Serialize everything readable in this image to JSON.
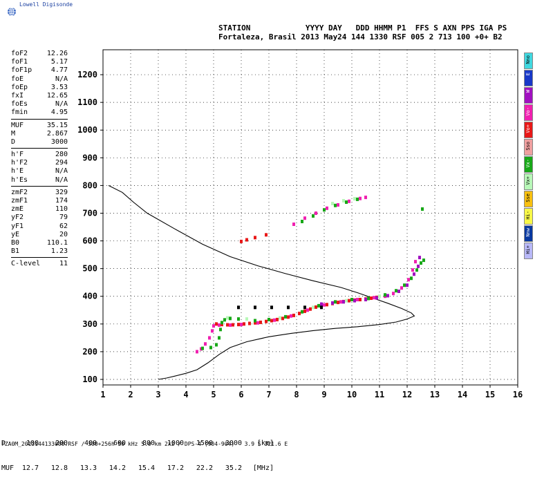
{
  "header": {
    "brand": "Lowell Digisonde",
    "station_row1": "STATION            YYYY DAY   DDD HHMM P1  FFS S AXN PPS IGA PS",
    "station_row2": "Fortaleza, Brasil 2013 May24 144 1330 RSF 005 2 713 100 +0+ B2"
  },
  "params": [
    {
      "label": "foF2",
      "value": "12.26"
    },
    {
      "label": "foF1",
      "value": "5.17"
    },
    {
      "label": "foF1p",
      "value": "4.77"
    },
    {
      "label": "foE",
      "value": "N/A"
    },
    {
      "label": "foEp",
      "value": "3.53"
    },
    {
      "label": "fxI",
      "value": "12.65"
    },
    {
      "label": "foEs",
      "value": "N/A"
    },
    {
      "label": "fmin",
      "value": "4.95"
    },
    {
      "sep": true
    },
    {
      "label": "MUF",
      "value": "35.15"
    },
    {
      "label": "M",
      "value": "2.867"
    },
    {
      "label": "D",
      "value": "3000"
    },
    {
      "sep": true
    },
    {
      "label": "h'F",
      "value": "280"
    },
    {
      "label": "h'F2",
      "value": "294"
    },
    {
      "label": "h'E",
      "value": "N/A"
    },
    {
      "label": "h'Es",
      "value": "N/A"
    },
    {
      "sep": true
    },
    {
      "label": "zmF2",
      "value": "329"
    },
    {
      "label": "zmF1",
      "value": "174"
    },
    {
      "label": "zmE",
      "value": "110"
    },
    {
      "label": "yF2",
      "value": "79"
    },
    {
      "label": "yF1",
      "value": "62"
    },
    {
      "label": "yE",
      "value": "20"
    },
    {
      "label": "B0",
      "value": "110.1"
    },
    {
      "label": "B1",
      "value": "1.23"
    },
    {
      "sep": true
    },
    {
      "label": "C-level",
      "value": "11"
    }
  ],
  "legend": [
    {
      "label": "Nno",
      "color": "#40d8e0"
    },
    {
      "label": "E",
      "color": "#1838c8"
    },
    {
      "label": "W",
      "color": "#a010c0"
    },
    {
      "label": "Vo-",
      "color": "#f020b0"
    },
    {
      "label": "Vo+",
      "color": "#e81818"
    },
    {
      "label": "Sso",
      "color": "#f0a0a0"
    },
    {
      "label": "Vx-",
      "color": "#18a818"
    },
    {
      "label": "Vx+",
      "color": "#b8f8b8"
    },
    {
      "label": "Sse",
      "color": "#f8c010"
    },
    {
      "label": "Hi-",
      "color": "#f8f848"
    },
    {
      "label": "Nnw",
      "color": "#0838a0"
    },
    {
      "label": "Hi+",
      "color": "#b8b8f8"
    }
  ],
  "muf_table": {
    "d_label": "D",
    "muf_label": "MUF",
    "distances": [
      "100",
      "200",
      "400",
      "600",
      "800",
      "1000",
      "1500",
      "3000"
    ],
    "mufs": [
      "12.7",
      "12.8",
      "13.3",
      "14.2",
      "15.4",
      "17.2",
      "22.2",
      "35.2"
    ],
    "d_unit": "[km]",
    "muf_unit": "[MHz]"
  },
  "footer": "FZA0M_2013144133000.RSF / 300+256h 50 kHz 5.0 km 2x2 / DPS-4 (904-904)   3.9 S 321.6 E",
  "chart_data": {
    "type": "scatter",
    "title": "",
    "xlabel": "",
    "ylabel": "",
    "xlim": [
      1,
      16
    ],
    "ylim": [
      80,
      1290
    ],
    "xticks": [
      1,
      2,
      3,
      4,
      5,
      6,
      7,
      8,
      9,
      10,
      11,
      12,
      13,
      14,
      15,
      16
    ],
    "yticks": [
      100,
      200,
      300,
      400,
      500,
      600,
      700,
      800,
      900,
      1000,
      1100,
      1200
    ],
    "grid": true,
    "series": [
      {
        "color": "#e81818",
        "points": [
          [
            5.1,
            300
          ],
          [
            5.3,
            298
          ],
          [
            5.5,
            297
          ],
          [
            5.7,
            297
          ],
          [
            5.9,
            298
          ],
          [
            6.1,
            300
          ],
          [
            6.3,
            302
          ],
          [
            6.5,
            304
          ],
          [
            6.7,
            306
          ],
          [
            6.9,
            309
          ],
          [
            7.1,
            312
          ],
          [
            7.3,
            316
          ],
          [
            7.5,
            320
          ],
          [
            7.7,
            325
          ],
          [
            7.9,
            331
          ],
          [
            8.1,
            338
          ],
          [
            8.3,
            346
          ],
          [
            8.5,
            354
          ],
          [
            8.7,
            361
          ],
          [
            8.9,
            366
          ],
          [
            9.1,
            370
          ],
          [
            9.3,
            374
          ],
          [
            9.5,
            378
          ],
          [
            9.7,
            381
          ],
          [
            9.9,
            384
          ],
          [
            10.1,
            386
          ],
          [
            10.3,
            388
          ],
          [
            10.5,
            390
          ],
          [
            10.7,
            393
          ],
          [
            10.9,
            396
          ],
          [
            6.0,
            598
          ],
          [
            6.2,
            604
          ],
          [
            6.5,
            612
          ],
          [
            6.9,
            622
          ]
        ]
      },
      {
        "color": "#f020b0",
        "points": [
          [
            4.4,
            200
          ],
          [
            4.55,
            210
          ],
          [
            4.7,
            228
          ],
          [
            4.85,
            250
          ],
          [
            4.95,
            275
          ],
          [
            5.0,
            293
          ],
          [
            5.2,
            296
          ],
          [
            5.6,
            296
          ],
          [
            6.0,
            298
          ],
          [
            6.6,
            304
          ],
          [
            7.2,
            314
          ],
          [
            7.8,
            329
          ],
          [
            8.4,
            350
          ],
          [
            9.0,
            369
          ],
          [
            9.6,
            380
          ],
          [
            10.2,
            388
          ],
          [
            10.8,
            395
          ],
          [
            11.2,
            400
          ],
          [
            11.5,
            410
          ],
          [
            11.8,
            430
          ],
          [
            12.05,
            460
          ],
          [
            12.2,
            495
          ],
          [
            12.3,
            525
          ],
          [
            7.9,
            660
          ],
          [
            8.3,
            682
          ],
          [
            8.7,
            700
          ],
          [
            9.1,
            718
          ],
          [
            9.5,
            730
          ],
          [
            9.9,
            743
          ],
          [
            10.3,
            753
          ],
          [
            10.5,
            757
          ]
        ]
      },
      {
        "color": "#18a818",
        "points": [
          [
            4.6,
            212
          ],
          [
            4.9,
            215
          ],
          [
            5.1,
            225
          ],
          [
            5.2,
            250
          ],
          [
            5.25,
            280
          ],
          [
            5.3,
            305
          ],
          [
            5.4,
            315
          ],
          [
            5.6,
            320
          ],
          [
            5.9,
            318
          ],
          [
            6.5,
            312
          ],
          [
            7.0,
            316
          ],
          [
            7.6,
            326
          ],
          [
            8.2,
            344
          ],
          [
            8.8,
            366
          ],
          [
            9.4,
            380
          ],
          [
            10.0,
            388
          ],
          [
            10.6,
            392
          ],
          [
            11.2,
            405
          ],
          [
            11.6,
            420
          ],
          [
            11.9,
            440
          ],
          [
            12.15,
            465
          ],
          [
            12.35,
            495
          ],
          [
            12.5,
            520
          ],
          [
            12.6,
            530
          ],
          [
            8.2,
            670
          ],
          [
            8.6,
            690
          ],
          [
            9.0,
            712
          ],
          [
            9.4,
            728
          ],
          [
            9.8,
            740
          ],
          [
            10.2,
            750
          ],
          [
            12.55,
            715
          ]
        ]
      },
      {
        "color": "#b8f8b8",
        "points": [
          [
            5.5,
            322
          ],
          [
            6.2,
            318
          ],
          [
            7.4,
            322
          ],
          [
            8.6,
            360
          ],
          [
            9.8,
            384
          ],
          [
            11.0,
            400
          ],
          [
            9.3,
            735
          ],
          [
            9.7,
            745
          ],
          [
            10.1,
            752
          ]
        ]
      },
      {
        "color": "#a010c0",
        "points": [
          [
            8.9,
            372
          ],
          [
            9.3,
            376
          ],
          [
            9.7,
            380
          ],
          [
            10.1,
            384
          ],
          [
            10.5,
            388
          ],
          [
            10.9,
            394
          ],
          [
            11.3,
            402
          ],
          [
            11.7,
            418
          ],
          [
            12.0,
            440
          ],
          [
            12.25,
            480
          ],
          [
            12.4,
            508
          ],
          [
            12.45,
            540
          ]
        ]
      },
      {
        "color": "#000000",
        "points": [
          [
            5.9,
            360
          ],
          [
            6.5,
            360
          ],
          [
            7.1,
            360
          ],
          [
            7.7,
            360
          ],
          [
            8.3,
            360
          ],
          [
            8.9,
            360
          ]
        ]
      }
    ],
    "profile": {
      "color": "#000000",
      "points": [
        [
          3.0,
          100
        ],
        [
          3.3,
          105
        ],
        [
          3.6,
          112
        ],
        [
          4.0,
          122
        ],
        [
          4.4,
          135
        ],
        [
          4.8,
          160
        ],
        [
          5.2,
          190
        ],
        [
          5.6,
          215
        ],
        [
          6.2,
          236
        ],
        [
          7.0,
          254
        ],
        [
          7.8,
          266
        ],
        [
          8.6,
          276
        ],
        [
          9.4,
          284
        ],
        [
          10.2,
          290
        ],
        [
          11.0,
          298
        ],
        [
          11.6,
          307
        ],
        [
          12.0,
          318
        ],
        [
          12.26,
          329
        ],
        [
          12.15,
          340
        ],
        [
          11.8,
          356
        ],
        [
          11.3,
          375
        ],
        [
          10.8,
          392
        ],
        [
          10.2,
          413
        ],
        [
          9.6,
          432
        ],
        [
          8.6,
          456
        ],
        [
          7.6,
          482
        ],
        [
          6.6,
          510
        ],
        [
          5.6,
          543
        ],
        [
          4.6,
          588
        ],
        [
          3.6,
          643
        ],
        [
          2.6,
          700
        ],
        [
          2.1,
          740
        ],
        [
          1.7,
          775
        ],
        [
          1.2,
          800
        ]
      ]
    }
  }
}
